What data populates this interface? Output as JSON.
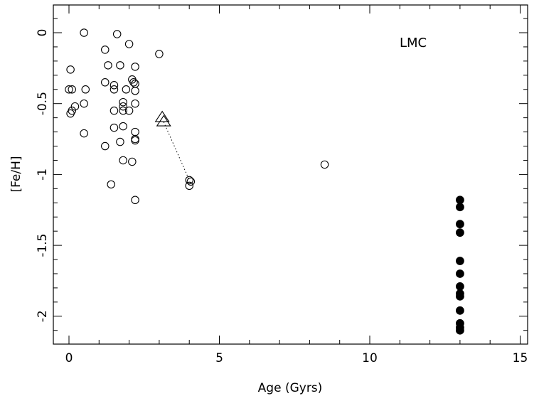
{
  "chart_data": {
    "type": "scatter",
    "title": "",
    "xlabel": "Age (Gyrs)",
    "ylabel": "[Fe/H]",
    "xlim": [
      -0.5,
      15.5
    ],
    "ylim": [
      -2.2,
      0.2
    ],
    "xticks": [
      0,
      5,
      10,
      15
    ],
    "xtick_labels": [
      "0",
      "5",
      "10",
      "15"
    ],
    "yticks": [
      0,
      -0.5,
      -1,
      -1.5,
      -2
    ],
    "ytick_labels": [
      "0",
      "-0.5",
      "-1",
      "-1.5",
      "-2"
    ],
    "annotation": "LMC",
    "grid": false,
    "series": [
      {
        "marker": "open-circle",
        "points": [
          [
            0.5,
            0.0
          ],
          [
            1.6,
            -0.01
          ],
          [
            2.0,
            -0.08
          ],
          [
            1.2,
            -0.12
          ],
          [
            3.0,
            -0.15
          ],
          [
            1.3,
            -0.23
          ],
          [
            1.7,
            -0.23
          ],
          [
            2.2,
            -0.24
          ],
          [
            0.05,
            -0.26
          ],
          [
            2.1,
            -0.33
          ],
          [
            2.15,
            -0.35
          ],
          [
            1.2,
            -0.35
          ],
          [
            2.2,
            -0.36
          ],
          [
            1.5,
            -0.37
          ],
          [
            0.0,
            -0.4
          ],
          [
            0.1,
            -0.4
          ],
          [
            0.55,
            -0.4
          ],
          [
            1.5,
            -0.4
          ],
          [
            1.9,
            -0.4
          ],
          [
            2.2,
            -0.41
          ],
          [
            1.8,
            -0.49
          ],
          [
            0.5,
            -0.5
          ],
          [
            2.2,
            -0.5
          ],
          [
            0.2,
            -0.52
          ],
          [
            1.8,
            -0.52
          ],
          [
            1.8,
            -0.55
          ],
          [
            1.5,
            -0.55
          ],
          [
            2.0,
            -0.55
          ],
          [
            0.1,
            -0.55
          ],
          [
            0.05,
            -0.57
          ],
          [
            1.8,
            -0.66
          ],
          [
            1.5,
            -0.67
          ],
          [
            2.2,
            -0.7
          ],
          [
            0.5,
            -0.71
          ],
          [
            2.2,
            -0.75
          ],
          [
            2.2,
            -0.76
          ],
          [
            1.7,
            -0.77
          ],
          [
            1.2,
            -0.8
          ],
          [
            1.8,
            -0.9
          ],
          [
            2.1,
            -0.91
          ],
          [
            8.5,
            -0.93
          ],
          [
            4.0,
            -1.04
          ],
          [
            4.05,
            -1.05
          ],
          [
            4.0,
            -1.08
          ],
          [
            1.4,
            -1.07
          ],
          [
            2.2,
            -1.18
          ]
        ]
      },
      {
        "marker": "open-triangle",
        "points": [
          [
            3.1,
            -0.6
          ],
          [
            3.15,
            -0.63
          ]
        ]
      },
      {
        "marker": "filled-circle",
        "points": [
          [
            13.0,
            -1.18
          ],
          [
            13.0,
            -1.23
          ],
          [
            13.0,
            -1.35
          ],
          [
            13.0,
            -1.41
          ],
          [
            13.0,
            -1.61
          ],
          [
            13.0,
            -1.7
          ],
          [
            13.0,
            -1.79
          ],
          [
            13.0,
            -1.84
          ],
          [
            13.0,
            -1.86
          ],
          [
            13.0,
            -1.96
          ],
          [
            13.0,
            -2.05
          ],
          [
            13.0,
            -2.08
          ],
          [
            13.0,
            -2.1
          ]
        ]
      }
    ],
    "connector": {
      "style": "dotted",
      "from": [
        3.15,
        -0.63
      ],
      "to": [
        4.0,
        -1.04
      ]
    }
  }
}
